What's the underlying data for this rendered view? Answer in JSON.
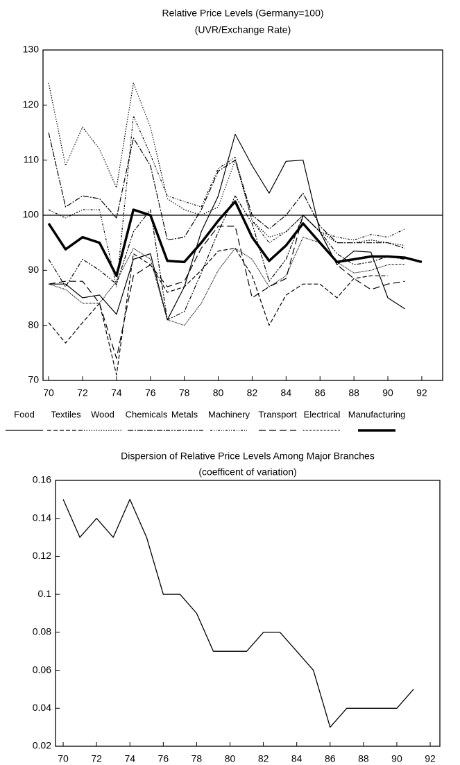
{
  "chart_data": [
    {
      "type": "line",
      "title": "Relative Price Levels (Germany=100)",
      "subtitle": "(UVR/Exchange Rate)",
      "x": [
        70,
        71,
        72,
        73,
        74,
        75,
        76,
        77,
        78,
        79,
        80,
        81,
        82,
        83,
        84,
        85,
        86,
        87,
        88,
        89,
        90,
        91,
        92
      ],
      "series": [
        {
          "name": "Food",
          "color": "#000000",
          "values": [
            87.5,
            87.5,
            85,
            85.5,
            82,
            92,
            93,
            81,
            87,
            97,
            103.5,
            114.7,
            109,
            104,
            109.8,
            110,
            97,
            91,
            93.5,
            93.3,
            85,
            83,
            null
          ]
        },
        {
          "name": "Textiles",
          "color": "#000000",
          "values": [
            80.5,
            76.8,
            80.5,
            84,
            71,
            93,
            91,
            86,
            87,
            90,
            93.5,
            94,
            89,
            80,
            85.5,
            87.5,
            87.5,
            85,
            88.5,
            89,
            89,
            null,
            null
          ]
        },
        {
          "name": "Wood",
          "color": "#000000",
          "values": [
            124,
            109,
            116,
            112,
            105,
            124,
            116,
            103,
            101,
            100,
            101.5,
            110,
            99,
            96,
            97,
            100,
            97,
            95,
            95,
            95.5,
            95,
            94.5,
            null
          ]
        },
        {
          "name": "Chemicals",
          "color": "#000000",
          "values": [
            115,
            101.5,
            103.5,
            103,
            99.5,
            114,
            109,
            95.5,
            96,
            101,
            108,
            110,
            100,
            97.5,
            100,
            104,
            98,
            95,
            95,
            95,
            95,
            94,
            null
          ]
        },
        {
          "name": "Metals",
          "color": "#000000",
          "values": [
            92,
            87,
            92,
            90,
            87.5,
            97,
            101,
            81,
            82.5,
            89.5,
            97,
            103.5,
            98.5,
            88,
            92,
            100,
            97,
            93,
            91,
            91.5,
            92.5,
            92,
            null
          ]
        },
        {
          "name": "Machinery",
          "color": "#000000",
          "values": [
            101,
            99.5,
            101,
            101,
            87,
            118,
            111,
            103.5,
            102.5,
            101.5,
            108.5,
            110.5,
            99,
            95,
            97,
            100,
            97,
            96,
            95.5,
            96.5,
            96,
            97.5,
            null
          ]
        },
        {
          "name": "Transport",
          "color": "#000000",
          "values": [
            87.5,
            88,
            88,
            84,
            74,
            89,
            91,
            87,
            88,
            94,
            98,
            98,
            85,
            87,
            88.5,
            100,
            97,
            91,
            88.5,
            86.5,
            87.5,
            88,
            null
          ]
        },
        {
          "name": "Electrical",
          "color": "#000000",
          "values": [
            87.5,
            86.5,
            84,
            84,
            88,
            94,
            92,
            81,
            80,
            84,
            90,
            94,
            92,
            87,
            89,
            96,
            95,
            91.5,
            89.5,
            90,
            91,
            91,
            null
          ]
        },
        {
          "name": "Manufacturing",
          "color": "#000000",
          "values": [
            98.5,
            93.8,
            96,
            95,
            89,
            101,
            100,
            91.7,
            91.5,
            95,
            99,
            102.5,
            96,
            91.7,
            94.5,
            98.5,
            95,
            91.5,
            92,
            92.5,
            92.5,
            92.3,
            91.5
          ]
        }
      ],
      "reference_line": 100,
      "xlim": [
        69.67,
        93.23
      ],
      "xticks": [
        70,
        72,
        74,
        76,
        78,
        80,
        82,
        84,
        86,
        88,
        90,
        92
      ],
      "ylim": [
        70,
        130
      ],
      "yticks": [
        70,
        80,
        90,
        100,
        110,
        120,
        130
      ],
      "legend": "bottom"
    },
    {
      "type": "line",
      "title": "Dispersion of Relative Price Levels Among Major Branches",
      "subtitle": "(coefficent of variation)",
      "x": [
        70,
        71,
        72,
        73,
        74,
        75,
        76,
        77,
        78,
        79,
        80,
        81,
        82,
        83,
        84,
        85,
        86,
        87,
        88,
        89,
        90,
        91
      ],
      "values": [
        0.15,
        0.13,
        0.14,
        0.13,
        0.15,
        0.13,
        0.1,
        0.1,
        0.09,
        0.07,
        0.07,
        0.07,
        0.08,
        0.08,
        0.07,
        0.06,
        0.03,
        0.04,
        0.04,
        0.04,
        0.04,
        0.05
      ],
      "color": "#000000",
      "xlim": [
        69.54,
        92.58
      ],
      "xticks": [
        70,
        72,
        74,
        76,
        78,
        80,
        82,
        84,
        86,
        88,
        90,
        92
      ],
      "ylim": [
        0.02,
        0.16
      ],
      "yticks": [
        0.02,
        0.04,
        0.06,
        0.08,
        0.1,
        0.12,
        0.14,
        0.16
      ]
    }
  ]
}
